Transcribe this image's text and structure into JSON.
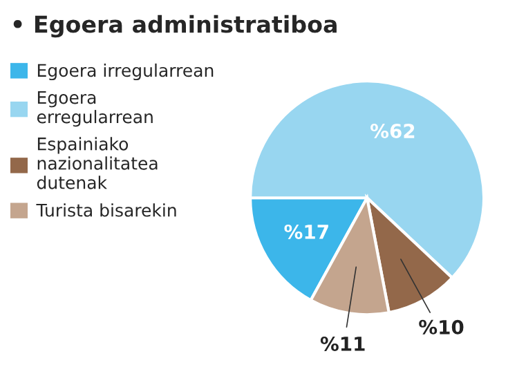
{
  "chart_data": {
    "type": "pie",
    "title": "• Egoera administratiboa",
    "categories": [
      "Egoera irregularrean",
      "Egoera\nerregularrean",
      "Espainiako\nnazionalitatea\ndutenak",
      "Turista bisarekin"
    ],
    "values": [
      17,
      62,
      10,
      11
    ],
    "colors": [
      "#3cb6ea",
      "#98d6f0",
      "#93684a",
      "#c4a58e"
    ],
    "value_labels": [
      "%17",
      "%62",
      "%10",
      "%11"
    ],
    "legend": "left"
  }
}
